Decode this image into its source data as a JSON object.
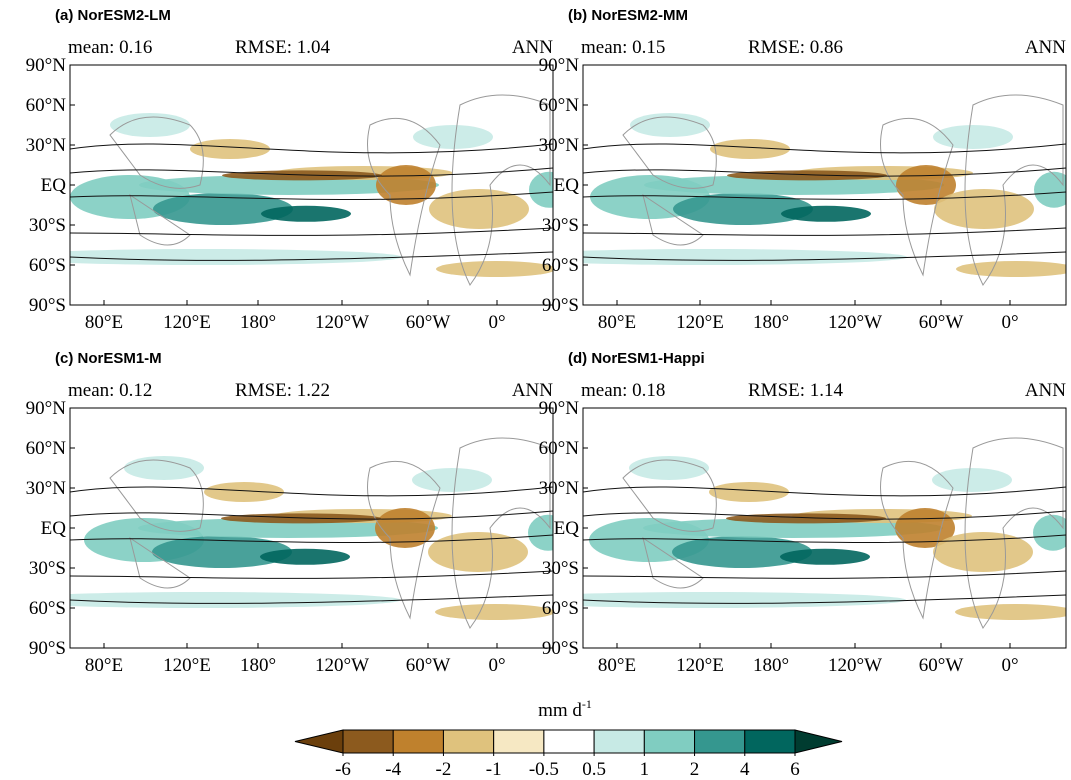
{
  "panels": [
    {
      "label": "(a) NorESM2-LM",
      "mean": "mean: 0.16",
      "rmse": "RMSE: 1.04",
      "season": "ANN"
    },
    {
      "label": "(b) NorESM2-MM",
      "mean": "mean: 0.15",
      "rmse": "RMSE: 0.86",
      "season": "ANN"
    },
    {
      "label": "(c) NorESM1-M",
      "mean": "mean: 0.12",
      "rmse": "RMSE: 1.22",
      "season": "ANN"
    },
    {
      "label": "(d) NorESM1-Happi",
      "mean": "mean: 0.18",
      "rmse": "RMSE: 1.14",
      "season": "ANN"
    }
  ],
  "lat_labels": [
    "90°N",
    "60°N",
    "30°N",
    "EQ",
    "30°S",
    "60°S",
    "90°S"
  ],
  "lon_labels": [
    "80°E",
    "120°E",
    "180°",
    "120°W",
    "60°W",
    "0°"
  ],
  "colorbar": {
    "unit": "mm d",
    "unit_exponent": "-1",
    "colors": [
      "#6b3f0c",
      "#8c5a1e",
      "#bf812d",
      "#dfc27d",
      "#f6e8c3",
      "#ffffff",
      "#c7eae5",
      "#80cdc1",
      "#35978f",
      "#01665e",
      "#003c30"
    ],
    "ticks": [
      -6,
      -4,
      -2,
      -1,
      -0.5,
      0.5,
      1,
      2,
      4,
      6
    ]
  }
}
